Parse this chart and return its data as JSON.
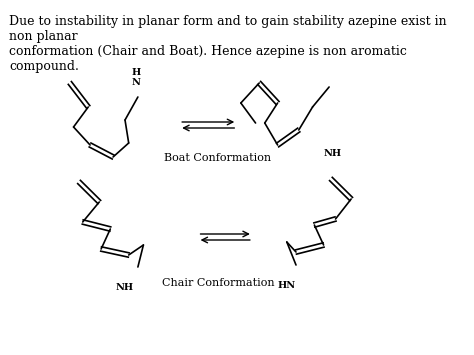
{
  "title_text": "Due to instability in planar form and to gain stability azepine exist in non planar\nconformation (Chair and Boat). Hence azepine is non aromatic compound.",
  "boat_label": "Boat Conformation",
  "chair_label": "Chair Conformation",
  "bg_color": "#ffffff",
  "text_color": "#000000",
  "line_color": "#000000",
  "font_size_title": 9,
  "font_size_label": 8
}
